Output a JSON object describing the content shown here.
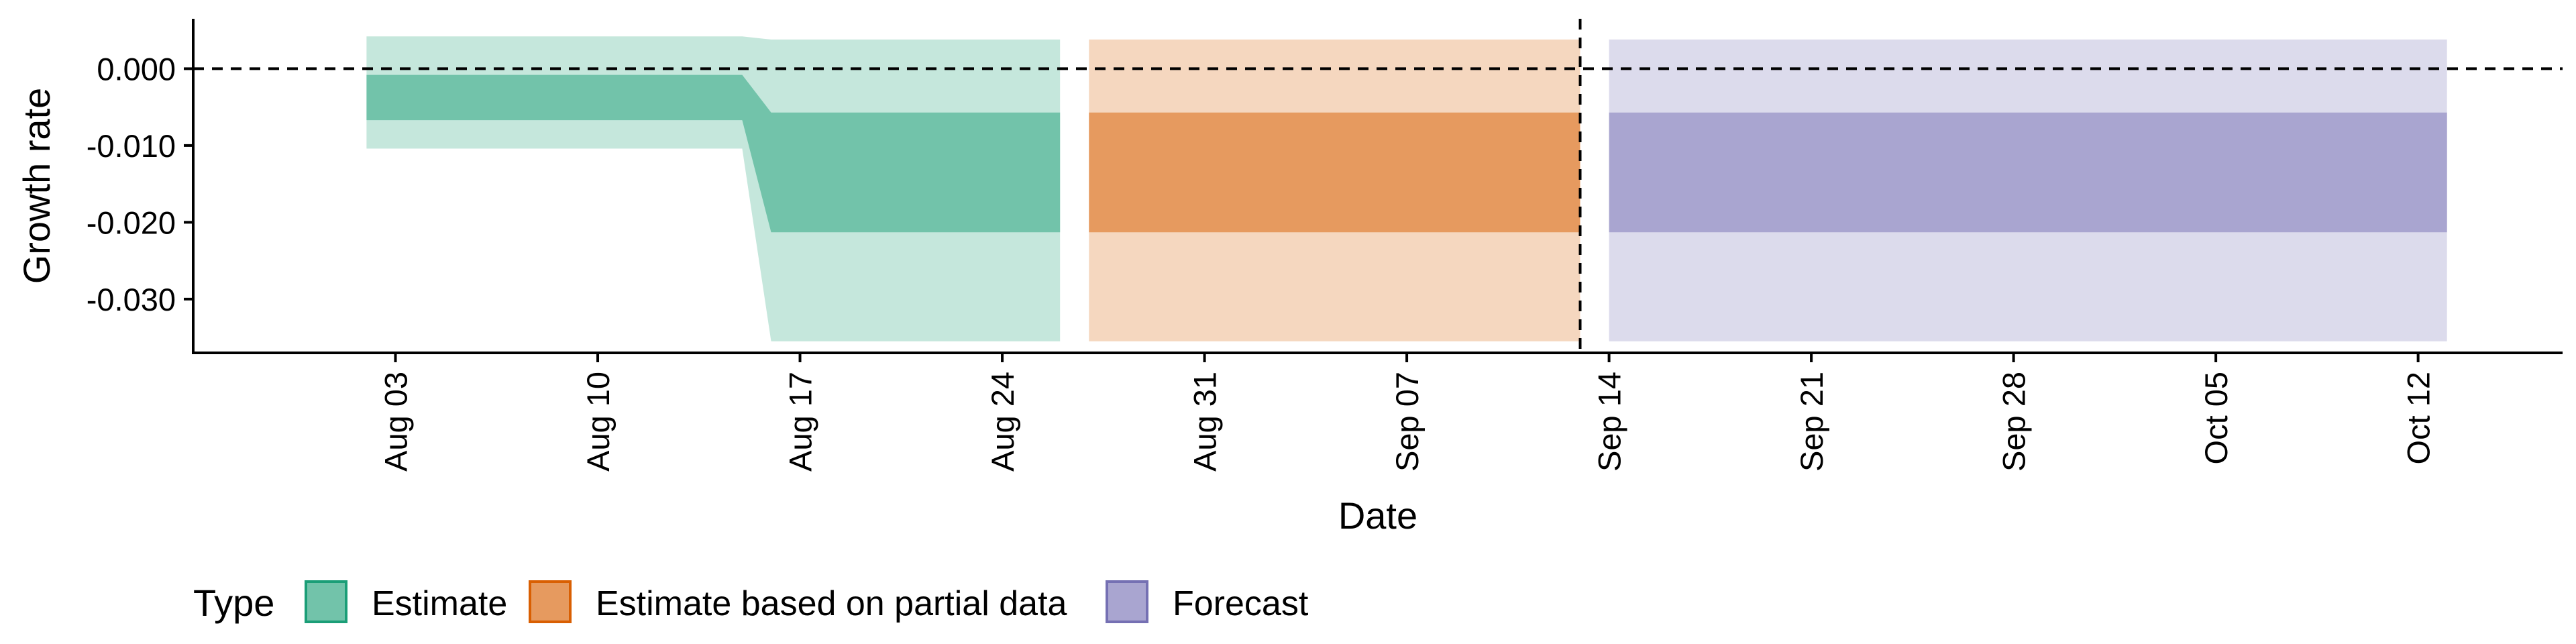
{
  "chart_data": {
    "type": "area",
    "title": "",
    "xlabel": "Date",
    "ylabel": "Growth rate",
    "ylim": [
      -0.037,
      0.0065
    ],
    "xlim": [
      "2025-07-27",
      "2025-10-17"
    ],
    "y_ticks": [
      {
        "value": 0.0,
        "label": "0.000"
      },
      {
        "value": -0.01,
        "label": "-0.010"
      },
      {
        "value": -0.02,
        "label": "-0.020"
      },
      {
        "value": -0.03,
        "label": "-0.030"
      }
    ],
    "x_ticks": [
      {
        "date": "2025-08-03",
        "label": "Aug 03"
      },
      {
        "date": "2025-08-10",
        "label": "Aug 10"
      },
      {
        "date": "2025-08-17",
        "label": "Aug 17"
      },
      {
        "date": "2025-08-24",
        "label": "Aug 24"
      },
      {
        "date": "2025-08-31",
        "label": "Aug 31"
      },
      {
        "date": "2025-09-07",
        "label": "Sep 07"
      },
      {
        "date": "2025-09-14",
        "label": "Sep 14"
      },
      {
        "date": "2025-09-21",
        "label": "Sep 21"
      },
      {
        "date": "2025-09-28",
        "label": "Sep 28"
      },
      {
        "date": "2025-10-05",
        "label": "Oct 05"
      },
      {
        "date": "2025-10-12",
        "label": "Oct 12"
      }
    ],
    "reference_lines": [
      {
        "axis": "y",
        "value": 0.0,
        "style": "dashed"
      },
      {
        "axis": "x",
        "value": "2025-09-13",
        "style": "dashed"
      }
    ],
    "grid": false,
    "legend": {
      "title": "Type",
      "position": "bottom-left",
      "entries": [
        {
          "name": "Estimate",
          "fill": "#72C3AA",
          "border": "#1B9E77"
        },
        {
          "name": "Estimate based on partial data",
          "fill": "#E69A5F",
          "border": "#D95F02"
        },
        {
          "name": "Forecast",
          "fill": "#A9A5D0",
          "border": "#7570B3"
        }
      ]
    },
    "series": [
      {
        "name": "Estimate",
        "color": "#72C3AA",
        "outer_color": "#C5E7DC",
        "points": [
          {
            "x": "2025-08-02",
            "lower90": -0.0104,
            "lower50": -0.0067,
            "upper50": -0.0008,
            "upper90": 0.0042
          },
          {
            "x": "2025-08-15",
            "lower90": -0.0104,
            "lower50": -0.0067,
            "upper50": -0.0008,
            "upper90": 0.0042
          },
          {
            "x": "2025-08-16",
            "lower90": -0.0355,
            "lower50": -0.0213,
            "upper50": -0.0057,
            "upper90": 0.0038
          },
          {
            "x": "2025-08-26",
            "lower90": -0.0355,
            "lower50": -0.0213,
            "upper50": -0.0057,
            "upper90": 0.0038
          }
        ]
      },
      {
        "name": "Estimate based on partial data",
        "color": "#E69A5F",
        "outer_color": "#F5D7BF",
        "points": [
          {
            "x": "2025-08-27",
            "lower90": -0.0355,
            "lower50": -0.0213,
            "upper50": -0.0057,
            "upper90": 0.0038
          },
          {
            "x": "2025-09-13",
            "lower90": -0.0355,
            "lower50": -0.0213,
            "upper50": -0.0057,
            "upper90": 0.0038
          }
        ]
      },
      {
        "name": "Forecast",
        "color": "#A9A5D0",
        "outer_color": "#DCDBEC",
        "points": [
          {
            "x": "2025-09-14",
            "lower90": -0.0355,
            "lower50": -0.0213,
            "upper50": -0.0057,
            "upper90": 0.0038
          },
          {
            "x": "2025-10-13",
            "lower90": -0.0355,
            "lower50": -0.0213,
            "upper50": -0.0057,
            "upper90": 0.0038
          }
        ]
      }
    ]
  }
}
